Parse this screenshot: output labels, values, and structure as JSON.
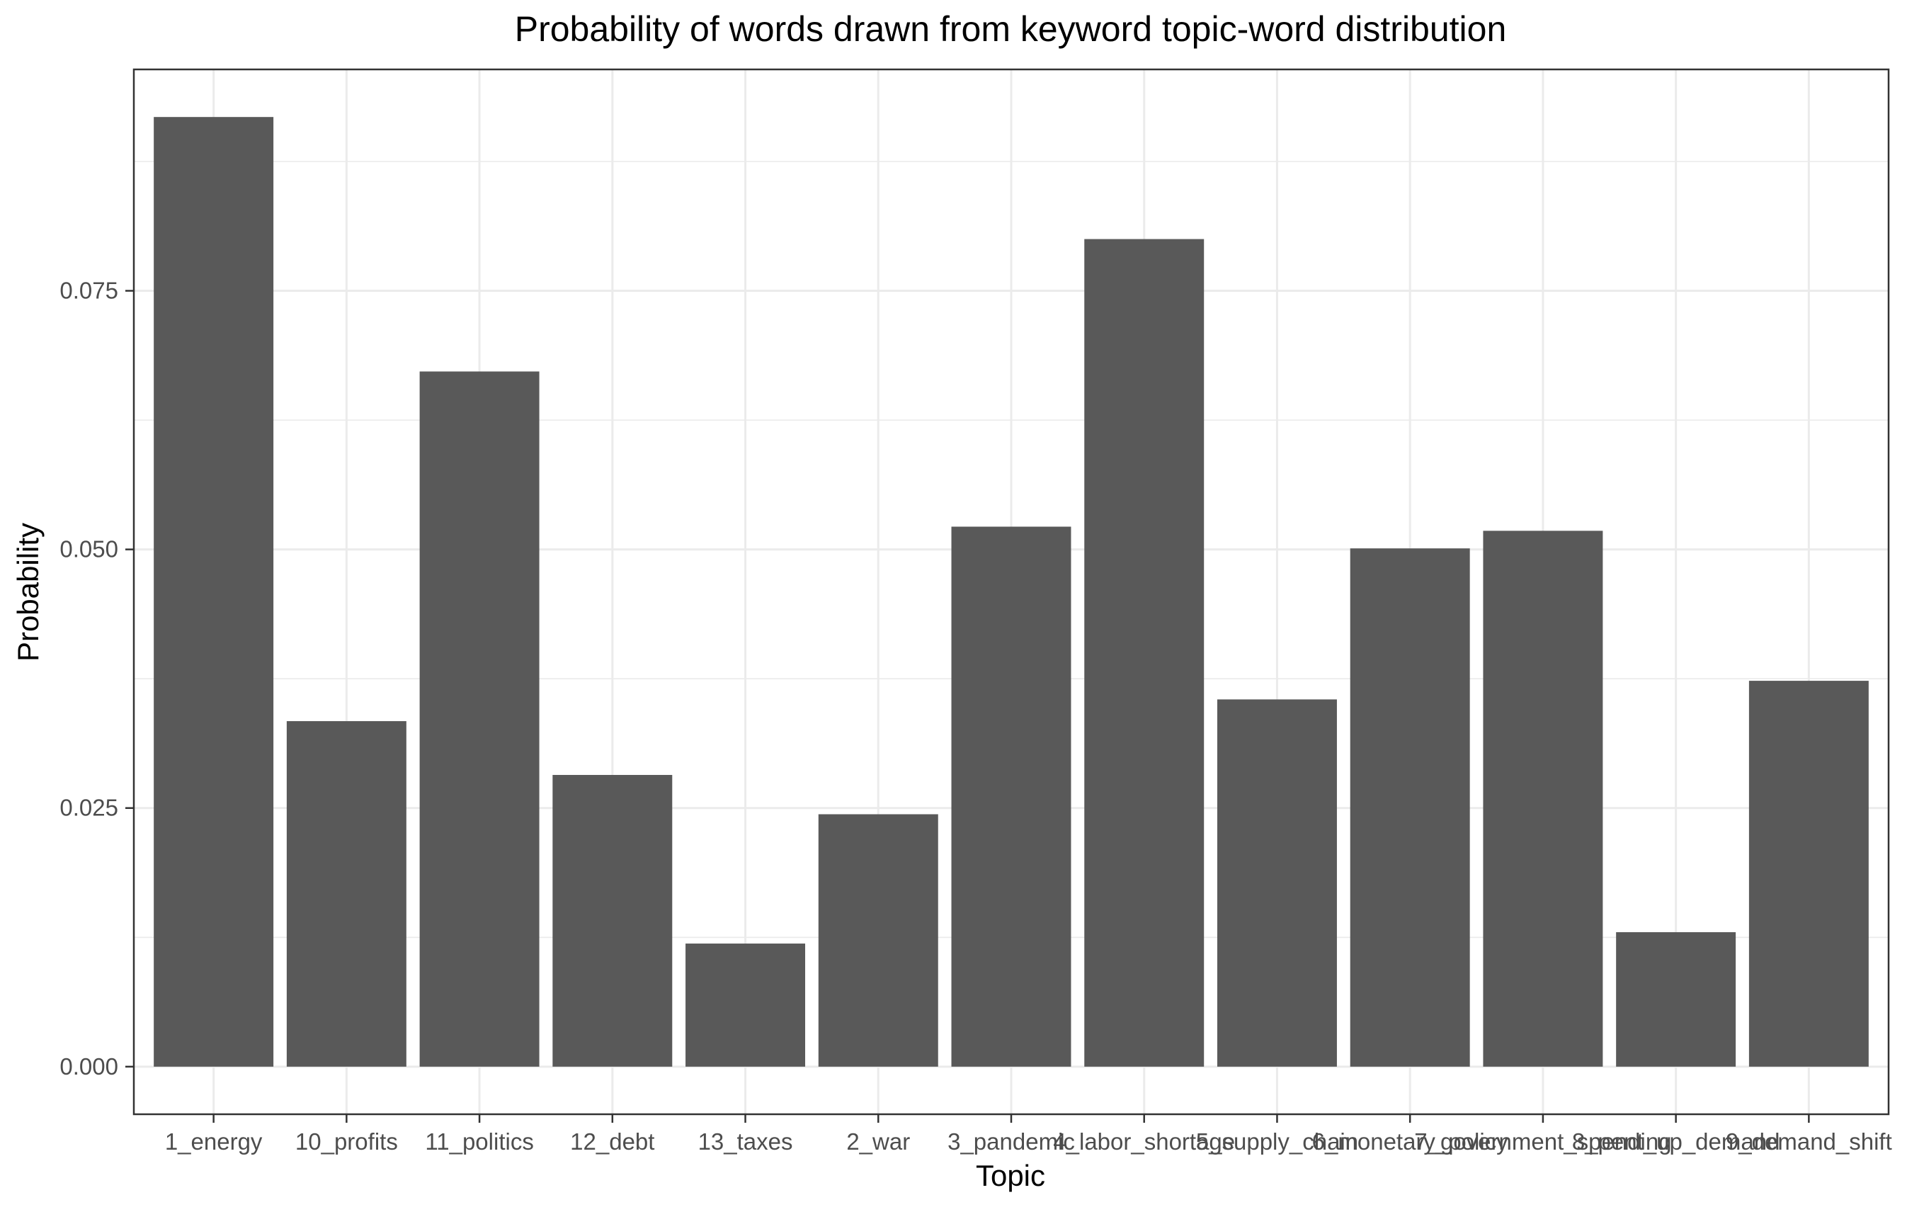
{
  "chart_data": {
    "type": "bar",
    "title": "Probability of words drawn from keyword topic-word distribution",
    "xlabel": "Topic",
    "ylabel": "Probability",
    "categories": [
      "1_energy",
      "10_profits",
      "11_politics",
      "12_debt",
      "13_taxes",
      "2_war",
      "3_pandemic",
      "4_labor_shortage",
      "5_supply_chain",
      "6_monetary_policy",
      "7_government_spending",
      "8_pent_up_demand",
      "9_demand_shift"
    ],
    "values": [
      0.0918,
      0.0334,
      0.0672,
      0.0282,
      0.0119,
      0.0244,
      0.0522,
      0.08,
      0.0355,
      0.0501,
      0.0518,
      0.013,
      0.0373
    ],
    "ylim": [
      -0.0046,
      0.0964
    ],
    "y_ticks": [
      0.0,
      0.025,
      0.05,
      0.075
    ],
    "y_tick_labels": [
      "0.000",
      "0.025",
      "0.050",
      "0.075"
    ],
    "grid": true,
    "legend": "none",
    "bar_color": "#595959",
    "theme": "bw"
  }
}
